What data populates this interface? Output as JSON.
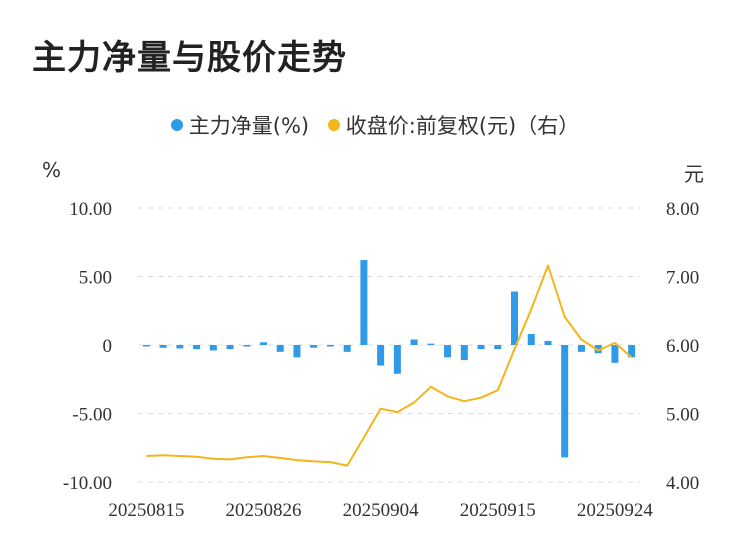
{
  "title": "主力净量与股价走势",
  "legend": {
    "series1": "主力净量(%)",
    "series2": "收盘价:前复权(元)（右）"
  },
  "units": {
    "left": "%",
    "right": "元"
  },
  "colors": {
    "bar": "#2f9be8",
    "line": "#f2b51c",
    "grid": "#dddddd"
  },
  "chart_data": {
    "type": "bar+line",
    "x": [
      "20250815",
      "20250818",
      "20250819",
      "20250820",
      "20250821",
      "20250822",
      "20250825",
      "20250826",
      "20250827",
      "20250828",
      "20250829",
      "20250901",
      "20250902",
      "20250903",
      "20250904",
      "20250905",
      "20250908",
      "20250909",
      "20250910",
      "20250911",
      "20250912",
      "20250915",
      "20250916",
      "20250917",
      "20250918",
      "20250919",
      "20250922",
      "20250923",
      "20250924",
      "20250925"
    ],
    "x_tick_labels": [
      "20250815",
      "20250826",
      "20250904",
      "20250915",
      "20250924"
    ],
    "y_left": {
      "ticks": [
        "10.00",
        "5.00",
        "0",
        "-5.00",
        "-10.00"
      ],
      "range": [
        -10,
        10
      ]
    },
    "y_right": {
      "ticks": [
        "8.00",
        "7.00",
        "6.00",
        "5.00",
        "4.00"
      ],
      "range": [
        4,
        8
      ]
    },
    "series": [
      {
        "name": "主力净量(%)",
        "axis": "left",
        "kind": "bar",
        "values": [
          -0.1,
          -0.2,
          -0.25,
          -0.3,
          -0.4,
          -0.3,
          -0.05,
          0.2,
          -0.5,
          -0.9,
          -0.2,
          0,
          -0.5,
          6.2,
          -1.5,
          -2.1,
          0.4,
          0.1,
          -0.9,
          -1.1,
          -0.3,
          -0.3,
          3.9,
          0.8,
          0.3,
          -8.2,
          -0.5,
          -0.6,
          -1.3,
          -0.9
        ]
      },
      {
        "name": "收盘价:前复权(元)（右）",
        "axis": "right",
        "kind": "line",
        "values": [
          4.38,
          4.39,
          4.38,
          4.37,
          4.34,
          4.33,
          4.36,
          4.38,
          4.35,
          4.32,
          4.3,
          4.29,
          4.24,
          4.65,
          5.07,
          5.02,
          5.16,
          5.39,
          5.25,
          5.18,
          5.23,
          5.34,
          5.94,
          6.52,
          7.16,
          6.41,
          6.08,
          5.92,
          6.03,
          5.82
        ]
      }
    ]
  }
}
